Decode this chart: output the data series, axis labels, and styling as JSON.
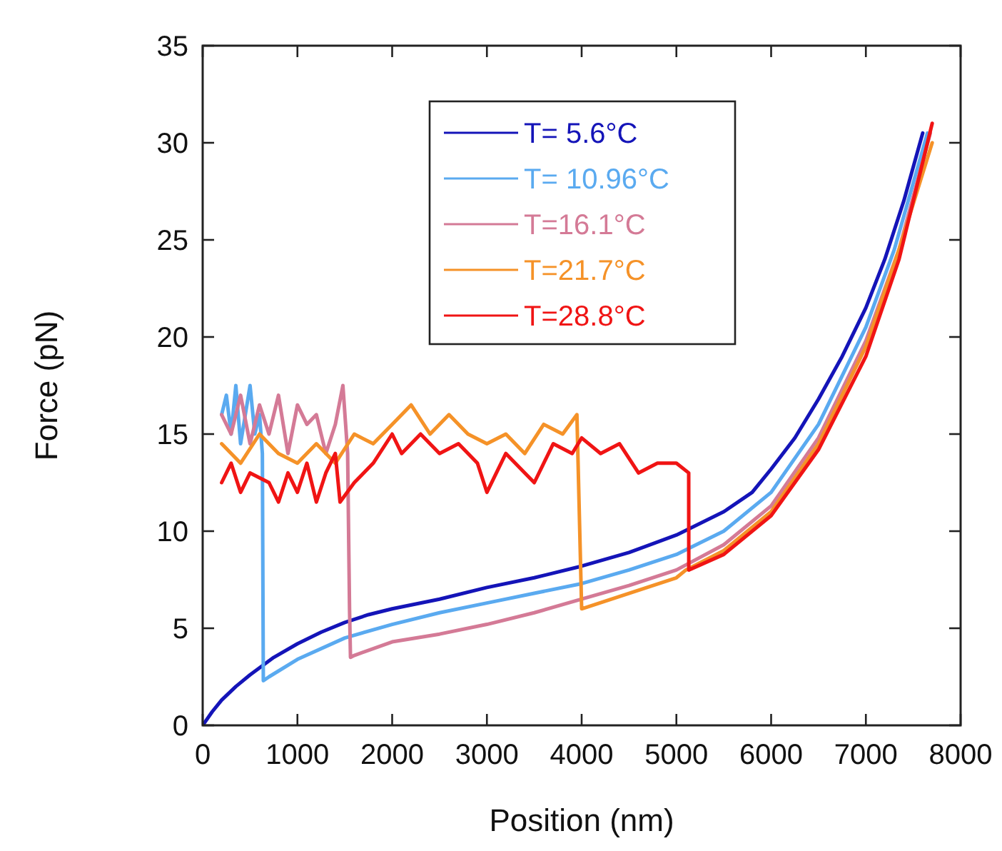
{
  "chart_data": {
    "type": "line",
    "xlabel": "Position (nm)",
    "ylabel": "Force (pN)",
    "xlim": [
      0,
      8000
    ],
    "ylim": [
      0,
      35
    ],
    "xticks": [
      0,
      1000,
      2000,
      3000,
      4000,
      5000,
      6000,
      7000,
      8000
    ],
    "yticks": [
      0,
      5,
      10,
      15,
      20,
      25,
      30,
      35
    ],
    "grid": false,
    "legend": "top",
    "line_style": "solid",
    "marker": "none",
    "series": [
      {
        "name": "T= 5.6°C",
        "color": "#1414b8",
        "x": [
          0,
          100,
          200,
          350,
          500,
          750,
          1000,
          1250,
          1500,
          1750,
          2000,
          2500,
          3000,
          3500,
          4000,
          4500,
          5000,
          5500,
          5800,
          6000,
          6250,
          6500,
          6750,
          7000,
          7200,
          7400,
          7600
        ],
        "values": [
          0,
          0.7,
          1.3,
          2,
          2.6,
          3.5,
          4.2,
          4.8,
          5.3,
          5.7,
          6,
          6.5,
          7.1,
          7.6,
          8.2,
          8.9,
          9.8,
          11,
          12,
          13.2,
          14.8,
          16.8,
          19,
          21.5,
          24,
          27,
          30.5
        ]
      },
      {
        "name": "T= 10.96°C",
        "color": "#5aaaf0",
        "x": [
          200,
          250,
          300,
          350,
          400,
          450,
          500,
          550,
          600,
          630,
          640,
          700,
          1000,
          1500,
          2000,
          2500,
          3000,
          3500,
          4000,
          4500,
          5000,
          5500,
          6000,
          6500,
          7000,
          7300,
          7650
        ],
        "values": [
          16,
          17,
          15,
          17.5,
          14.5,
          16,
          17.5,
          15,
          16,
          14,
          2.3,
          2.5,
          3.4,
          4.5,
          5.2,
          5.8,
          6.3,
          6.8,
          7.3,
          8,
          8.8,
          10,
          12,
          15.5,
          20.5,
          24.5,
          30.5
        ]
      },
      {
        "name": "T=16.1°C",
        "color": "#d47a96",
        "x": [
          200,
          300,
          400,
          500,
          600,
          700,
          800,
          900,
          1000,
          1100,
          1200,
          1300,
          1400,
          1480,
          1530,
          1540,
          1550,
          1560,
          1600,
          2000,
          2500,
          3000,
          3500,
          4000,
          4500,
          5000,
          5500,
          6000,
          6500,
          7000,
          7350,
          7680
        ],
        "values": [
          16,
          15,
          17,
          14.5,
          16.5,
          15,
          17,
          14,
          16.5,
          15.5,
          16,
          14,
          15.5,
          17.5,
          14,
          10,
          6,
          3.5,
          3.6,
          4.3,
          4.7,
          5.2,
          5.8,
          6.5,
          7.2,
          8,
          9.3,
          11.3,
          14.8,
          19.8,
          24.5,
          30.5
        ]
      },
      {
        "name": "T=21.7°C",
        "color": "#f59228",
        "x": [
          200,
          400,
          600,
          800,
          1000,
          1200,
          1400,
          1600,
          1800,
          2000,
          2200,
          2400,
          2600,
          2800,
          3000,
          3200,
          3400,
          3600,
          3800,
          3950,
          4000,
          4500,
          5000,
          5100,
          5500,
          6000,
          6500,
          7000,
          7350,
          7700
        ],
        "values": [
          14.5,
          13.5,
          15,
          14,
          13.5,
          14.5,
          13.5,
          15,
          14.5,
          15.5,
          16.5,
          15,
          16,
          15,
          14.5,
          15,
          14,
          15.5,
          15,
          16,
          6,
          6.8,
          7.6,
          8,
          9,
          11,
          14.5,
          19.5,
          24.5,
          30
        ]
      },
      {
        "name": "T=28.8°C",
        "color": "#f01414",
        "x": [
          200,
          300,
          400,
          500,
          700,
          800,
          900,
          1000,
          1100,
          1200,
          1300,
          1400,
          1450,
          1600,
          1800,
          2000,
          2100,
          2300,
          2500,
          2700,
          2900,
          3000,
          3200,
          3400,
          3500,
          3700,
          3900,
          4000,
          4200,
          4400,
          4600,
          4800,
          5000,
          5130,
          5131,
          5500,
          6000,
          6500,
          7000,
          7350,
          7700
        ],
        "values": [
          12.5,
          13.5,
          12,
          13,
          12.5,
          11.5,
          13,
          12,
          13.5,
          11.5,
          13,
          14,
          11.5,
          12.5,
          13.5,
          15,
          14,
          15,
          14,
          14.5,
          13.5,
          12,
          14,
          13,
          12.5,
          14.5,
          14,
          14.8,
          14,
          14.5,
          13,
          13.5,
          13.5,
          13,
          8,
          8.8,
          10.8,
          14.2,
          19,
          24,
          31
        ]
      }
    ]
  }
}
